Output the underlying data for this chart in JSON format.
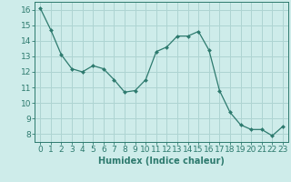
{
  "x": [
    0,
    1,
    2,
    3,
    4,
    5,
    6,
    7,
    8,
    9,
    10,
    11,
    12,
    13,
    14,
    15,
    16,
    17,
    18,
    19,
    20,
    21,
    22,
    23
  ],
  "y": [
    16.1,
    14.7,
    13.1,
    12.2,
    12.0,
    12.4,
    12.2,
    11.5,
    10.7,
    10.8,
    11.5,
    13.3,
    13.6,
    14.3,
    14.3,
    14.6,
    13.4,
    10.8,
    9.4,
    8.6,
    8.3,
    8.3,
    7.9,
    8.5
  ],
  "line_color": "#2d7a6e",
  "marker": "D",
  "marker_size": 2.0,
  "bg_color": "#ceecea",
  "grid_color": "#aed4d2",
  "xlabel": "Humidex (Indice chaleur)",
  "xlabel_fontsize": 7,
  "tick_label_fontsize": 6.5,
  "ylim": [
    7.5,
    16.5
  ],
  "xlim": [
    -0.5,
    23.5
  ],
  "yticks": [
    8,
    9,
    10,
    11,
    12,
    13,
    14,
    15,
    16
  ],
  "xticks": [
    0,
    1,
    2,
    3,
    4,
    5,
    6,
    7,
    8,
    9,
    10,
    11,
    12,
    13,
    14,
    15,
    16,
    17,
    18,
    19,
    20,
    21,
    22,
    23
  ]
}
